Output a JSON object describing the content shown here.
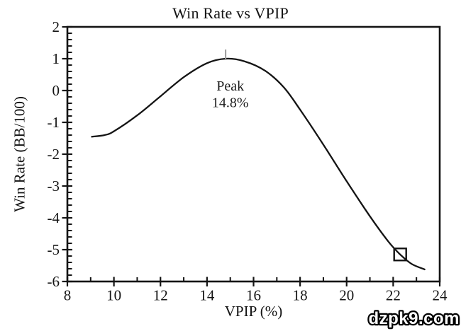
{
  "page": {
    "background": "#ffffff",
    "watermark_text": "dzpk9.com"
  },
  "chart_data": {
    "type": "line",
    "title": "Win Rate vs VPIP",
    "xlabel": "VPIP (%)",
    "ylabel": "Win Rate (BB/100)",
    "xlim": [
      8,
      24
    ],
    "ylim": [
      -6,
      2
    ],
    "x_major_ticks": [
      8,
      10,
      12,
      14,
      16,
      18,
      20,
      22,
      24
    ],
    "x_minor_step": 1,
    "y_major_ticks": [
      2,
      1,
      0,
      -1,
      -2,
      -3,
      -4,
      -5,
      -6
    ],
    "y_minor_step": 0.2,
    "grid": false,
    "legend": false,
    "axis_color": "#141414",
    "line_color": "#141414",
    "series": [
      {
        "name": "win_rate_curve",
        "points": [
          [
            9.05,
            -1.45
          ],
          [
            9.6,
            -1.4
          ],
          [
            10,
            -1.28
          ],
          [
            11,
            -0.78
          ],
          [
            12,
            -0.18
          ],
          [
            13,
            0.42
          ],
          [
            14,
            0.86
          ],
          [
            14.8,
            1.0
          ],
          [
            15.6,
            0.92
          ],
          [
            16.5,
            0.62
          ],
          [
            17.3,
            0.1
          ],
          [
            18,
            -0.6
          ],
          [
            19,
            -1.7
          ],
          [
            20,
            -2.85
          ],
          [
            21,
            -3.95
          ],
          [
            21.8,
            -4.75
          ],
          [
            22.3,
            -5.15
          ],
          [
            22.8,
            -5.45
          ],
          [
            23.35,
            -5.62
          ]
        ]
      }
    ],
    "peak_marker": {
      "x": 14.8,
      "y": 1.0,
      "color": "#9a9a9a"
    },
    "annotation": {
      "line1": "Peak",
      "line2": "14.8%",
      "x": 15.0,
      "y1": 0.0,
      "y2": -0.52
    },
    "square_marker": {
      "x": 22.3,
      "y": -5.15,
      "size": 17,
      "color": "#141414"
    }
  }
}
